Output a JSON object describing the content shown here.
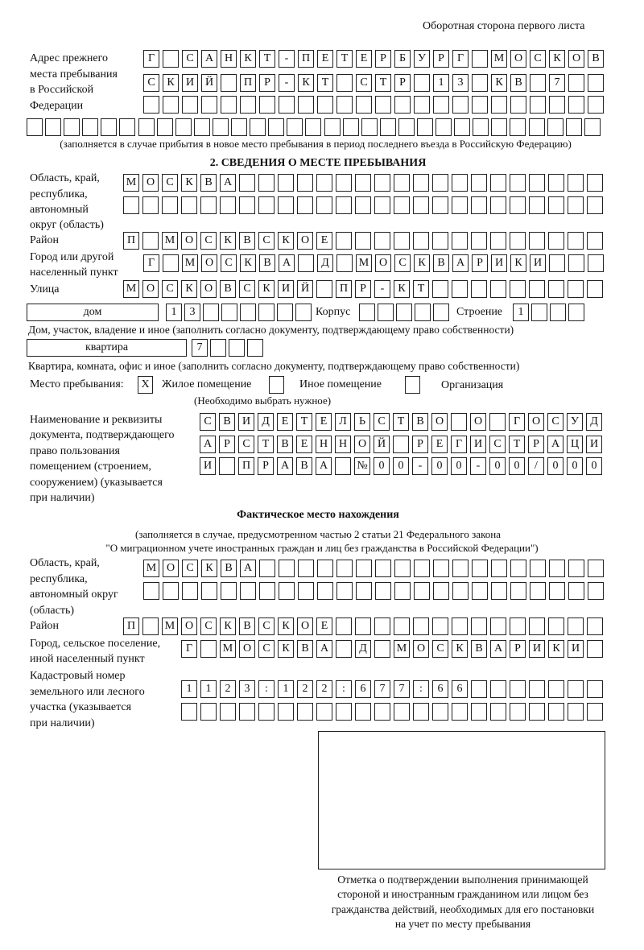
{
  "header": "Оборотная сторона первого листа",
  "prev_address": {
    "label": [
      "Адрес прежнего",
      "места пребывания",
      "в Российской",
      "Федерации"
    ],
    "rows": [
      "Г САНКТ-ПЕТЕРБУРГ МОСКОВ",
      "СКИЙ ПР-КТ СТР 13 КВ 7",
      "",
      ""
    ],
    "note": "(заполняется в случае прибытия в новое место пребывания в период последнего въезда в Российскую Федерацию)"
  },
  "section2": {
    "title": "2. СВЕДЕНИЯ О МЕСТЕ ПРЕБЫВАНИЯ",
    "region_label": [
      "Область, край,",
      "республика,",
      "автономный",
      "округ (область)"
    ],
    "region_rows": [
      "МОСКВА",
      ""
    ],
    "district_label": "Район",
    "district": "П МОСКВСКОЕ",
    "city_label": [
      "Город или другой",
      "населенный пункт"
    ],
    "city": "Г МОСКВА Д МОСКВАРИКИ",
    "street_label": "Улица",
    "street": "МОСКОВСКИЙ ПР-КТ",
    "house_type": "дом",
    "house": "13",
    "korpus_label": "Корпус",
    "korpus": "",
    "building_label": "Строение",
    "building": "1",
    "house_note": "Дом, участок, владение и иное (заполнить согласно документу, подтверждающему право собственности)",
    "apt_type": "квартира",
    "apt": "7",
    "apt_note": "Квартира, комната, офис и иное (заполнить согласно документу, подтверждающему право собственности)",
    "place_label": "Место пребывания:",
    "options": [
      {
        "label": "Жилое помещение",
        "mark": "X"
      },
      {
        "label": "Иное помещение",
        "mark": ""
      },
      {
        "label": "Организация",
        "mark": ""
      }
    ],
    "choose_note": "(Необходимо выбрать нужное)",
    "doc_label": [
      "Наименование и реквизиты",
      "документа, подтверждающего",
      "право пользования",
      "помещением (строением,",
      "сооружением) (указывается",
      "при наличии)"
    ],
    "doc_rows": [
      "СВИДЕТЕЛЬСТВО О ГОСУД",
      "АРСТВЕННОЙ РЕГИСТРАЦИ",
      "И ПРАВА №00-00-00/000"
    ]
  },
  "actual": {
    "title": "Фактическое место нахождения",
    "note": [
      "(заполняется в случае, предусмотренном частью 2 статьи 21 Федерального закона",
      "\"О миграционном учете иностранных граждан и лиц без гражданства в Российской Федерации\")"
    ],
    "region_label": [
      "Область, край,",
      "республика,",
      "автономный округ",
      "(область)"
    ],
    "region_rows": [
      "МОСКВА",
      ""
    ],
    "district_label": "Район",
    "district": "П МОСКВСКОЕ",
    "city_label": [
      "Город, сельское поселение,",
      "иной населенный пункт"
    ],
    "city": "Г МОСКВА Д МОСКВАРИКИ",
    "cadastre_label": [
      "Кадастровый номер",
      "земельного или лесного",
      "участка (указывается",
      "при наличии)"
    ],
    "cadastre_rows": [
      "1123:122:677:66",
      ""
    ]
  },
  "stamp_caption": [
    "Отметка о подтверждении выполнения принимающей",
    "стороной и иностранным гражданином или лицом без",
    "гражданства действий, необходимых для его постановки",
    "на учет по месту пребывания"
  ]
}
